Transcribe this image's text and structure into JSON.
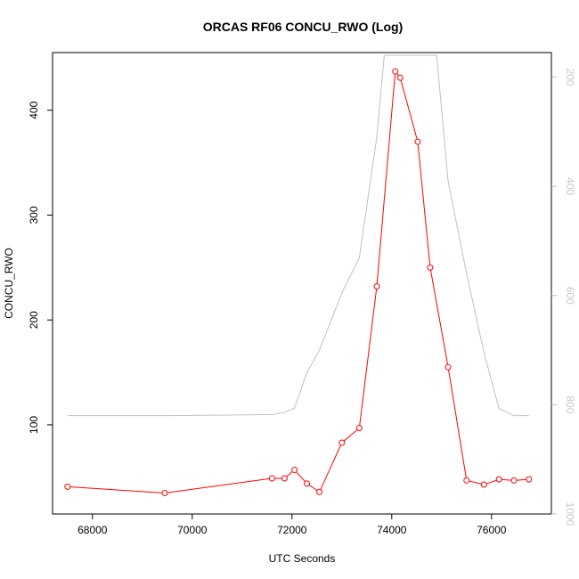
{
  "chart_data": {
    "type": "line",
    "title": "ORCAS RF06 CONCU_RWO (Log)",
    "xlabel": "UTC Seconds",
    "ylabel": "CONCU_RWO",
    "xlim": [
      67200,
      77200
    ],
    "ylim": [
      15,
      455
    ],
    "x_ticks": [
      68000,
      70000,
      72000,
      74000,
      76000
    ],
    "y_ticks": [
      100,
      200,
      300,
      400
    ],
    "y2_ticks": [
      200,
      400,
      600,
      800,
      1000
    ],
    "y2lim": [
      155,
      1000
    ],
    "y2_reversed": true,
    "colors": {
      "primary": "#ff0000",
      "secondary": "#c0c0c0"
    },
    "series": [
      {
        "color": "#ff0000",
        "markers": "open-circle",
        "axis": "left",
        "points": [
          [
            67500,
            41
          ],
          [
            69450,
            35
          ],
          [
            71600,
            49
          ],
          [
            71850,
            49
          ],
          [
            72050,
            57
          ],
          [
            72300,
            44
          ],
          [
            72550,
            36
          ],
          [
            73000,
            83
          ],
          [
            73350,
            97
          ],
          [
            73700,
            232
          ],
          [
            74070,
            437
          ],
          [
            74170,
            431
          ],
          [
            74520,
            370
          ],
          [
            74770,
            250
          ],
          [
            75130,
            155
          ],
          [
            75500,
            47
          ],
          [
            75850,
            43
          ],
          [
            76150,
            48
          ],
          [
            76450,
            47
          ],
          [
            76750,
            48
          ]
        ]
      },
      {
        "color": "#c0c0c0",
        "markers": "none",
        "axis": "right",
        "points": [
          [
            67500,
            820
          ],
          [
            69500,
            820
          ],
          [
            71600,
            818
          ],
          [
            71850,
            814
          ],
          [
            72050,
            806
          ],
          [
            72300,
            741
          ],
          [
            72550,
            700
          ],
          [
            73000,
            595
          ],
          [
            73350,
            531
          ],
          [
            73700,
            310
          ],
          [
            73850,
            160
          ],
          [
            74900,
            160
          ],
          [
            75130,
            391
          ],
          [
            75500,
            560
          ],
          [
            75850,
            705
          ],
          [
            76150,
            807
          ],
          [
            76450,
            820
          ],
          [
            76750,
            820
          ]
        ]
      }
    ]
  }
}
